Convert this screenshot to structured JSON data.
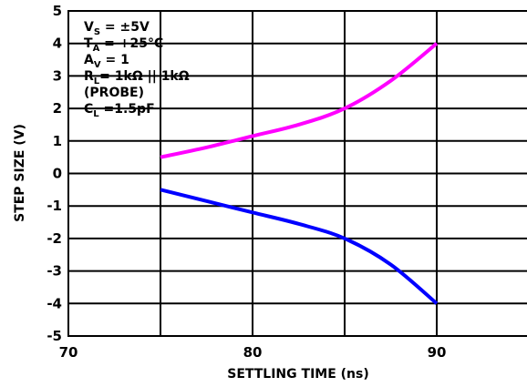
{
  "chart_data": {
    "type": "line",
    "xlabel": "SETTLING TIME (ns)",
    "ylabel": "STEP SIZE (V)",
    "xlim": [
      70,
      95
    ],
    "ylim": [
      -5,
      5
    ],
    "x_ticks": [
      "70",
      "80",
      "90"
    ],
    "y_ticks": [
      "5",
      "4",
      "3",
      "2",
      "1",
      "0",
      "-1",
      "-2",
      "-3",
      "-4",
      "-5"
    ],
    "grid": true,
    "series": [
      {
        "color": "#ff00ff",
        "points": [
          [
            75,
            0.5
          ],
          [
            77.5,
            0.8
          ],
          [
            80,
            1.15
          ],
          [
            82.5,
            1.5
          ],
          [
            85,
            2.0
          ],
          [
            87.5,
            2.85
          ],
          [
            90,
            4.0
          ]
        ]
      },
      {
        "color": "#0000ff",
        "points": [
          [
            75,
            -0.5
          ],
          [
            77.5,
            -0.85
          ],
          [
            80,
            -1.2
          ],
          [
            82.5,
            -1.55
          ],
          [
            85,
            -2.0
          ],
          [
            87.5,
            -2.8
          ],
          [
            90,
            -4.0
          ]
        ]
      }
    ],
    "annotations": [
      {
        "main": "V",
        "sub": "S",
        "rest": " = ±5V"
      },
      {
        "main": "T",
        "sub": "A",
        "rest": " = +25°C"
      },
      {
        "main": "A",
        "sub": "V",
        "rest": " = 1"
      },
      {
        "main": "R",
        "sub": "L",
        "rest": "= 1kΩ || 1kΩ"
      },
      {
        "main": "(PROBE)",
        "sub": "",
        "rest": ""
      },
      {
        "main": "C",
        "sub": "L",
        "rest": " =1.5pF"
      }
    ]
  }
}
